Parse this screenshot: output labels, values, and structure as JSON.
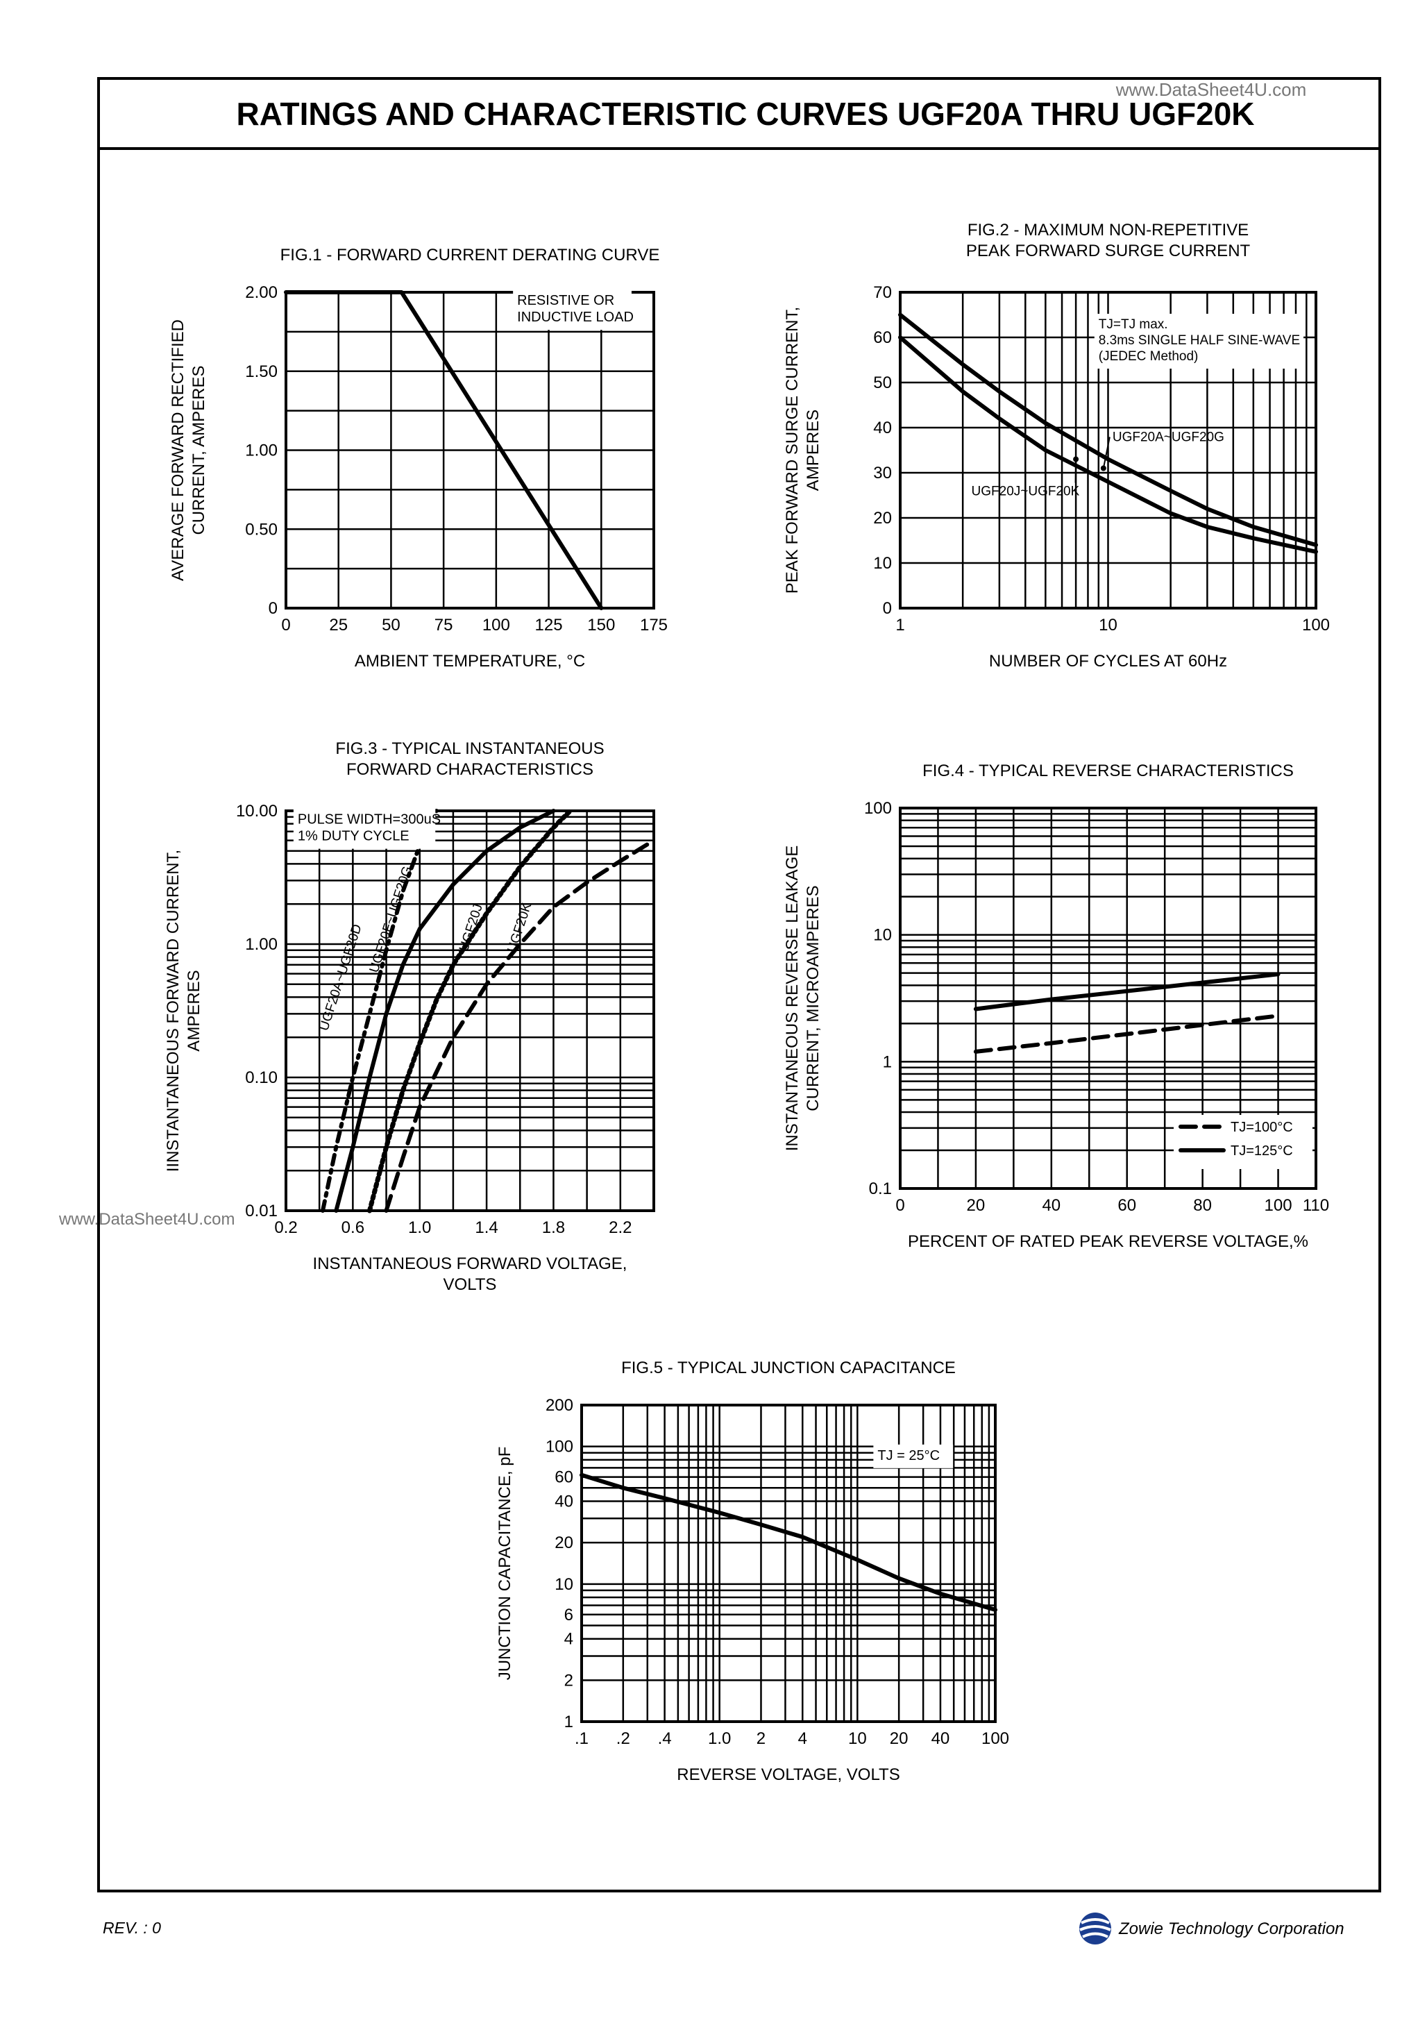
{
  "page": {
    "title": "RATINGS AND CHARACTERISTIC CURVES UGF20A THRU UGF20K",
    "watermark_top": "www.DataSheet4U.com",
    "watermark_side": "www.DataSheet4U.com",
    "revision": "REV. : 0",
    "company": "Zowie Technology Corporation",
    "logo_icon": "zowie-globe-icon"
  },
  "chart_data": [
    {
      "id": "fig1",
      "type": "line",
      "title": "FIG.1 - FORWARD CURRENT DERATING CURVE",
      "xlabel": "AMBIENT TEMPERATURE, °C",
      "ylabel_lines": [
        "AVERAGE FORWARD RECTIFIED",
        "CURRENT, AMPERES"
      ],
      "xlim": [
        0,
        175
      ],
      "ylim": [
        0,
        2.0
      ],
      "xscale": "linear",
      "yscale": "linear",
      "x_ticks": [
        0,
        25,
        50,
        75,
        100,
        125,
        150,
        175
      ],
      "x_tick_labels": [
        "0",
        "25",
        "50",
        "75",
        "100",
        "125",
        "150",
        "175"
      ],
      "y_ticks": [
        0,
        0.5,
        1.0,
        1.5,
        2.0
      ],
      "y_tick_labels": [
        "0",
        "0.50",
        "1.00",
        "1.50",
        "2.00"
      ],
      "grid": true,
      "annotations": [
        {
          "lines": [
            "RESISTIVE OR",
            "INDUCTIVE LOAD"
          ],
          "x": 110,
          "y": 1.92
        }
      ],
      "series": [
        {
          "style": "solid",
          "points": [
            [
              0,
              2.0
            ],
            [
              55,
              2.0
            ],
            [
              150,
              0
            ]
          ]
        }
      ]
    },
    {
      "id": "fig2",
      "type": "line",
      "title_lines": [
        "FIG.2 - MAXIMUM NON-REPETITIVE",
        "PEAK FORWARD SURGE CURRENT"
      ],
      "xlabel": "NUMBER OF CYCLES AT 60Hz",
      "ylabel_lines": [
        "PEAK FORWARD SURGE CURRENT,",
        "AMPERES"
      ],
      "xlim": [
        1,
        100
      ],
      "ylim": [
        0,
        70
      ],
      "xscale": "log",
      "yscale": "linear",
      "x_ticks": [
        1,
        10,
        100
      ],
      "x_tick_labels": [
        "1",
        "10",
        "100"
      ],
      "y_ticks": [
        0,
        10,
        20,
        30,
        40,
        50,
        60,
        70
      ],
      "y_tick_labels": [
        "0",
        "10",
        "20",
        "30",
        "40",
        "50",
        "60",
        "70"
      ],
      "grid": true,
      "annotations": [
        {
          "lines": [
            "TJ=TJ max.",
            "8.3ms SINGLE HALF SINE-WAVE",
            "(JEDEC Method)"
          ],
          "x": 9,
          "y": 62
        }
      ],
      "series": [
        {
          "name": "UGF20A~UGF20G",
          "style": "solid",
          "points": [
            [
              1,
              65
            ],
            [
              2,
              54
            ],
            [
              3,
              48
            ],
            [
              5,
              41
            ],
            [
              10,
              33
            ],
            [
              20,
              26
            ],
            [
              30,
              22
            ],
            [
              50,
              18
            ],
            [
              100,
              14
            ]
          ],
          "label_at": [
            10.5,
            37
          ],
          "arrow_to": [
            9.5,
            31
          ]
        },
        {
          "name": "UGF20J~UGF20K",
          "style": "solid",
          "points": [
            [
              1,
              60
            ],
            [
              2,
              48
            ],
            [
              3,
              42
            ],
            [
              5,
              35
            ],
            [
              10,
              28
            ],
            [
              20,
              21
            ],
            [
              30,
              18
            ],
            [
              50,
              15.5
            ],
            [
              100,
              12.5
            ]
          ],
          "label_at": [
            2.2,
            25
          ],
          "arrow_to": [
            7,
            33
          ]
        }
      ]
    },
    {
      "id": "fig3",
      "type": "line",
      "title_lines": [
        "FIG.3 - TYPICAL INSTANTANEOUS",
        "FORWARD CHARACTERISTICS"
      ],
      "xlabel_lines": [
        "INSTANTANEOUS FORWARD VOLTAGE,",
        "VOLTS"
      ],
      "ylabel_lines": [
        "IINSTANTANEOUS FORWARD CURRENT,",
        "AMPERES"
      ],
      "xlim": [
        0.2,
        2.4
      ],
      "ylim": [
        0.01,
        10
      ],
      "xscale": "linear",
      "yscale": "log",
      "x_ticks": [
        0.2,
        0.6,
        1.0,
        1.4,
        1.8,
        2.2
      ],
      "x_tick_labels": [
        "0.2",
        "0.6",
        "1.0",
        "1.4",
        "1.8",
        "2.2"
      ],
      "y_ticks": [
        0.01,
        0.1,
        1,
        10
      ],
      "y_tick_labels": [
        "0.01",
        "0.10",
        "1.00",
        "10.00"
      ],
      "grid": true,
      "annotations": [
        {
          "lines": [
            "PULSE WIDTH=300uS",
            "1% DUTY CYCLE"
          ],
          "x": 0.27,
          "y": 8
        }
      ],
      "series": [
        {
          "name": "UGF20A~UGF20D",
          "style": "dashdot",
          "points": [
            [
              0.42,
              0.01
            ],
            [
              0.5,
              0.03
            ],
            [
              0.6,
              0.1
            ],
            [
              0.7,
              0.3
            ],
            [
              0.8,
              0.9
            ],
            [
              0.9,
              2.5
            ],
            [
              1.0,
              5.5
            ],
            [
              1.1,
              10
            ]
          ],
          "label_at": [
            0.55,
            0.55
          ]
        },
        {
          "name": "UGF20F~UGF20G",
          "style": "solid",
          "points": [
            [
              0.5,
              0.01
            ],
            [
              0.6,
              0.03
            ],
            [
              0.7,
              0.1
            ],
            [
              0.8,
              0.3
            ],
            [
              0.9,
              0.7
            ],
            [
              1.0,
              1.3
            ],
            [
              1.2,
              2.8
            ],
            [
              1.4,
              5
            ],
            [
              1.6,
              7.5
            ],
            [
              1.8,
              10
            ]
          ],
          "label_at": [
            0.85,
            1.5
          ]
        },
        {
          "name": "UGF20J",
          "style": "dotted",
          "points": [
            [
              0.7,
              0.01
            ],
            [
              0.8,
              0.03
            ],
            [
              0.9,
              0.08
            ],
            [
              1.0,
              0.18
            ],
            [
              1.1,
              0.38
            ],
            [
              1.2,
              0.7
            ],
            [
              1.4,
              1.7
            ],
            [
              1.6,
              3.8
            ],
            [
              1.8,
              7.5
            ],
            [
              1.9,
              10
            ]
          ],
          "label_at": [
            1.33,
            1.3
          ]
        },
        {
          "name": "UGF20K",
          "style": "dashed",
          "points": [
            [
              0.8,
              0.01
            ],
            [
              0.9,
              0.025
            ],
            [
              1.0,
              0.06
            ],
            [
              1.2,
              0.2
            ],
            [
              1.4,
              0.5
            ],
            [
              1.6,
              1.0
            ],
            [
              1.8,
              1.9
            ],
            [
              2.0,
              2.9
            ],
            [
              2.2,
              4.2
            ],
            [
              2.4,
              6
            ]
          ],
          "label_at": [
            1.62,
            1.3
          ]
        }
      ]
    },
    {
      "id": "fig4",
      "type": "line",
      "title": "FIG.4 - TYPICAL REVERSE CHARACTERISTICS",
      "xlabel": "PERCENT OF RATED PEAK REVERSE VOLTAGE,%",
      "ylabel_lines": [
        "INSTANTANEOUS REVERSE LEAKAGE",
        "CURRENT, MICROAMPERES"
      ],
      "xlim": [
        0,
        110
      ],
      "ylim": [
        0.1,
        100
      ],
      "xscale": "linear",
      "yscale": "log",
      "x_ticks": [
        0,
        20,
        40,
        60,
        80,
        100,
        110
      ],
      "x_tick_labels": [
        "0",
        "20",
        "40",
        "60",
        "80",
        "100",
        "110"
      ],
      "y_ticks": [
        0.1,
        1,
        10,
        100
      ],
      "y_tick_labels": [
        "0.1",
        "1",
        "10",
        "100"
      ],
      "grid": true,
      "legend": "bottom-right",
      "series": [
        {
          "name": "TJ=100°C",
          "style": "dashed",
          "points": [
            [
              20,
              1.2
            ],
            [
              40,
              1.4
            ],
            [
              60,
              1.65
            ],
            [
              80,
              1.95
            ],
            [
              100,
              2.3
            ]
          ]
        },
        {
          "name": "TJ=125°C",
          "style": "solid",
          "points": [
            [
              20,
              2.6
            ],
            [
              40,
              3.1
            ],
            [
              60,
              3.6
            ],
            [
              80,
              4.2
            ],
            [
              100,
              4.9
            ]
          ]
        }
      ]
    },
    {
      "id": "fig5",
      "type": "line",
      "title": "FIG.5 - TYPICAL JUNCTION CAPACITANCE",
      "xlabel": "REVERSE VOLTAGE, VOLTS",
      "ylabel": "JUNCTION CAPACITANCE, pF",
      "xlim": [
        0.1,
        100
      ],
      "ylim": [
        1,
        200
      ],
      "xscale": "log",
      "yscale": "log",
      "x_ticks": [
        0.1,
        0.2,
        0.4,
        1,
        2,
        4,
        10,
        20,
        40,
        100
      ],
      "x_tick_labels": [
        ".1",
        ".2",
        ".4",
        "1.0",
        "2",
        "4",
        "10",
        "20",
        "40",
        "100"
      ],
      "y_ticks": [
        1,
        2,
        4,
        6,
        10,
        20,
        40,
        60,
        100,
        200
      ],
      "y_tick_labels": [
        "1",
        "2",
        "4",
        "6",
        "10",
        "20",
        "40",
        "60",
        "100",
        "200"
      ],
      "grid": true,
      "annotations": [
        {
          "lines": [
            "TJ = 25°C"
          ],
          "x": 14,
          "y": 80
        }
      ],
      "series": [
        {
          "style": "solid",
          "points": [
            [
              0.1,
              62
            ],
            [
              0.2,
              50
            ],
            [
              0.4,
              42
            ],
            [
              1,
              33
            ],
            [
              2,
              27
            ],
            [
              4,
              22
            ],
            [
              10,
              15
            ],
            [
              20,
              11
            ],
            [
              40,
              8.5
            ],
            [
              100,
              6.5
            ]
          ]
        }
      ]
    }
  ]
}
